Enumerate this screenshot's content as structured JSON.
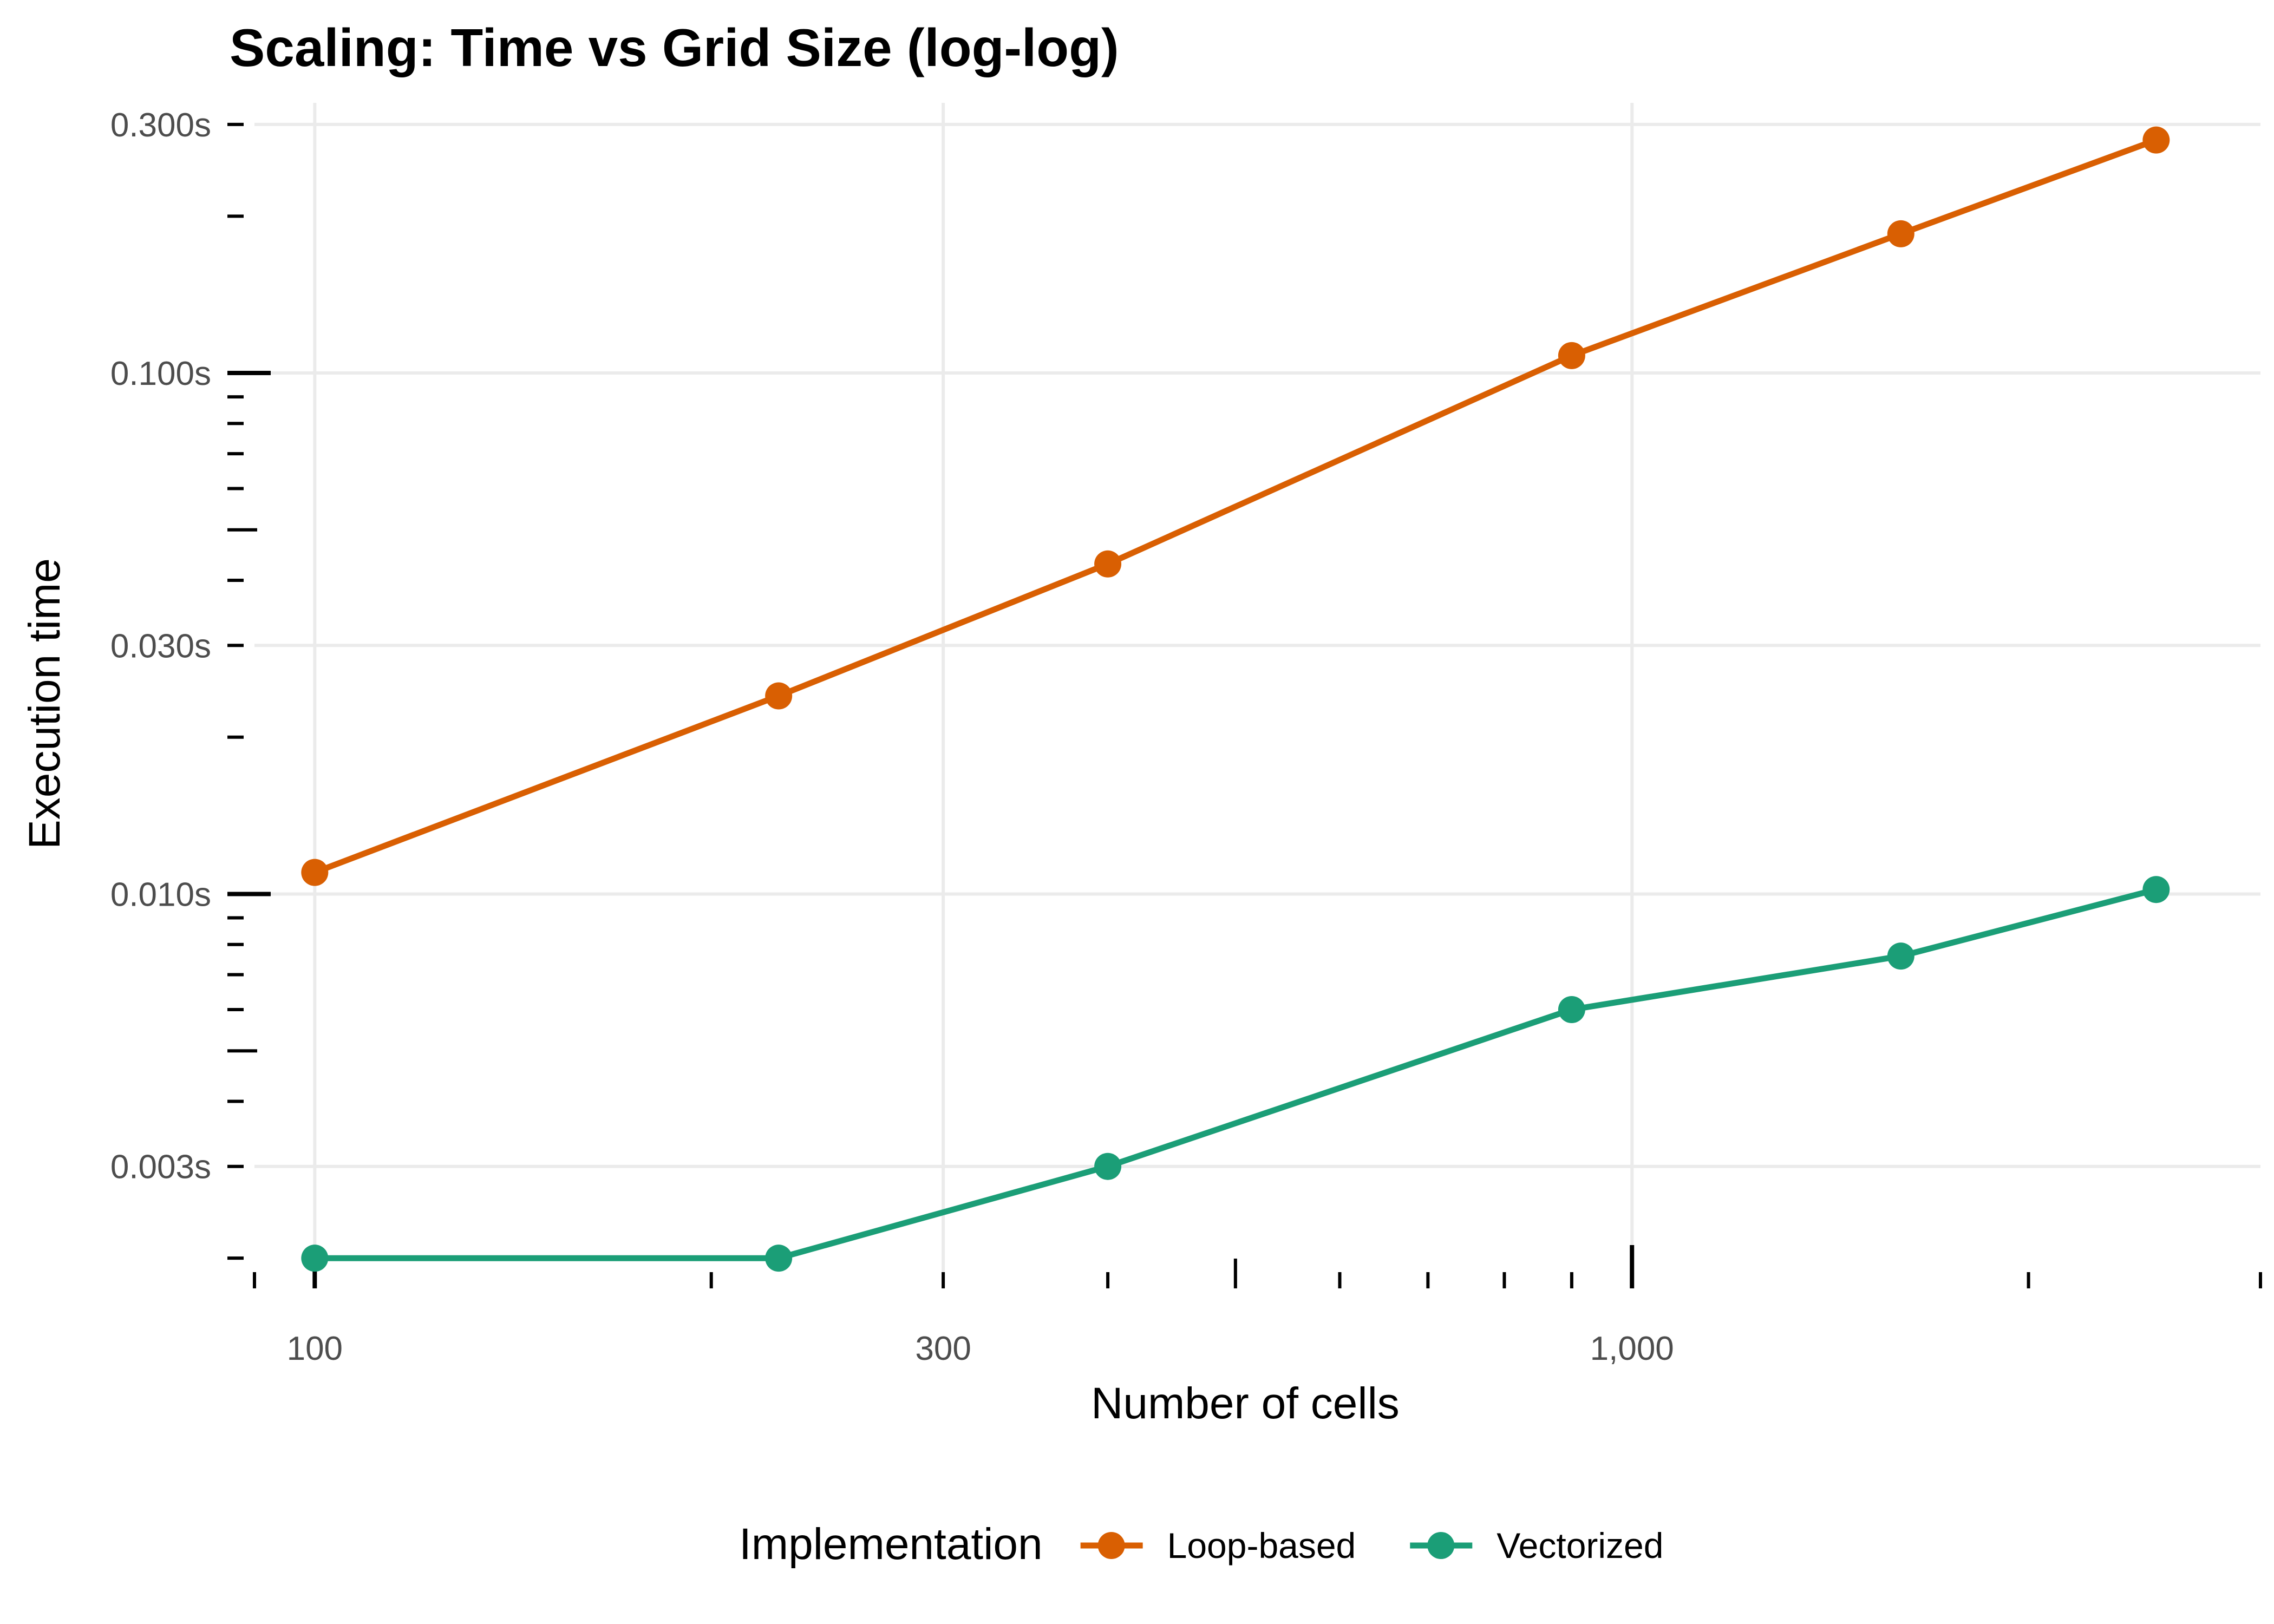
{
  "chart_data": {
    "type": "line",
    "title": "Scaling: Time vs Grid Size (log-log)",
    "xlabel": "Number of cells",
    "ylabel": "Execution time",
    "x_scale": "log10",
    "y_scale": "log10",
    "xlim": [
      90,
      3000
    ],
    "ylim": [
      0.00175,
      0.33
    ],
    "x_ticks": [
      100,
      300,
      1000
    ],
    "x_tick_labels": [
      "100",
      "300",
      "1,000"
    ],
    "y_ticks": [
      0.003,
      0.01,
      0.03,
      0.1,
      0.3
    ],
    "y_tick_labels": [
      "0.003s",
      "0.010s",
      "0.030s",
      "0.100s",
      "0.300s"
    ],
    "grid": true,
    "legend": {
      "title": "Implementation",
      "position": "bottom"
    },
    "series": [
      {
        "name": "Loop-based",
        "color": "#d95f02",
        "x": [
          100,
          225,
          400,
          900,
          1600,
          2500
        ],
        "y": [
          0.011,
          0.024,
          0.043,
          0.108,
          0.185,
          0.28
        ]
      },
      {
        "name": "Vectorized",
        "color": "#1b9e77",
        "x": [
          100,
          225,
          400,
          900,
          1600,
          2500
        ],
        "y": [
          0.002,
          0.002,
          0.003,
          0.006,
          0.0076,
          0.0102
        ]
      }
    ]
  }
}
